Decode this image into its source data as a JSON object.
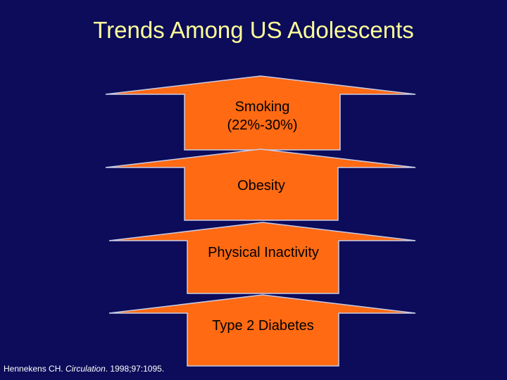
{
  "title": "Trends Among US Adolescents",
  "arrows": [
    {
      "line1": "Smoking",
      "line2": "(22%-30%)"
    },
    {
      "line1": "Obesity"
    },
    {
      "line1": "Physical Inactivity"
    },
    {
      "line1": "Type 2 Diabetes"
    }
  ],
  "citation": {
    "author": "Hennekens CH. ",
    "journal": "Circulation",
    "details": ". 1998;97:1095."
  },
  "colors": {
    "background": "#0c0c5a",
    "title": "#ffff99",
    "arrow_fill": "#ff6a13",
    "arrow_edge": "#c7cbe6"
  }
}
